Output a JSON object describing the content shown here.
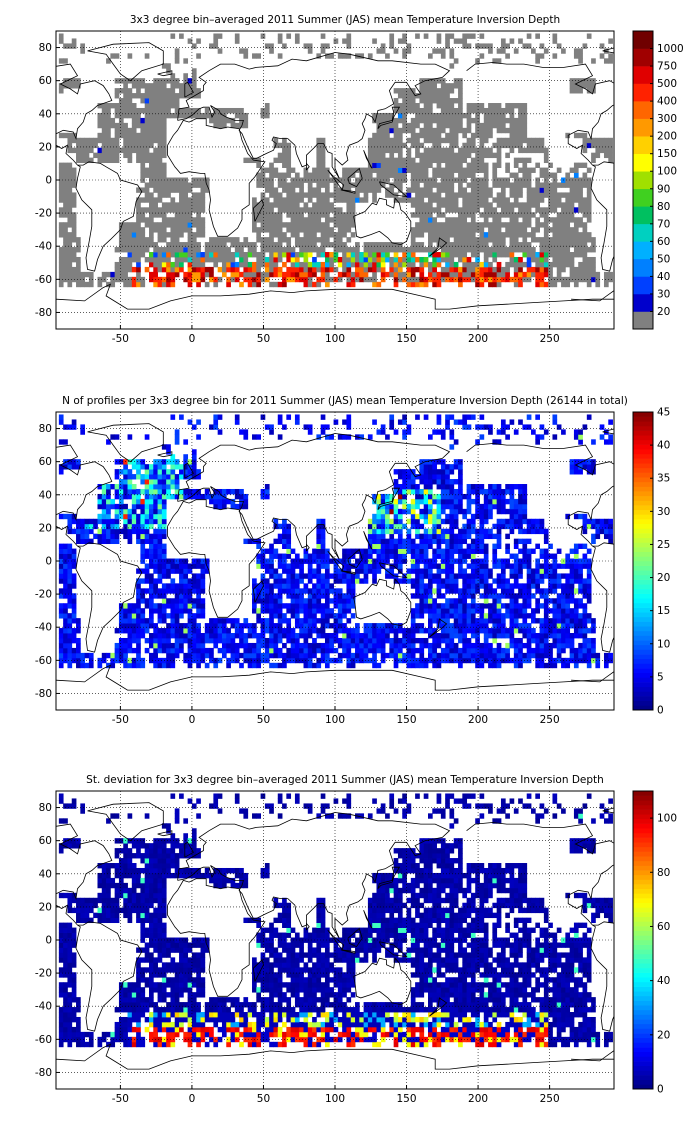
{
  "chart_data": [
    {
      "type": "heatmap",
      "title": "3x3 degree bin–averaged 2011 Summer (JAS) mean Temperature Inversion Depth",
      "xlim": [
        -95,
        295
      ],
      "ylim": [
        -90,
        90
      ],
      "xticks": [
        -50,
        0,
        50,
        100,
        150,
        200,
        250
      ],
      "yticks": [
        80,
        60,
        40,
        20,
        0,
        -20,
        -40,
        -60,
        -80
      ],
      "grid": true,
      "colorbar": {
        "scale": "categorical",
        "labels": [
          "20",
          "30",
          "40",
          "50",
          "60",
          "70",
          "80",
          "90",
          "100",
          "150",
          "200",
          "300",
          "400",
          "500",
          "750",
          "1000"
        ],
        "colors": [
          "#808080",
          "#0000cc",
          "#0040ff",
          "#0080ff",
          "#00b0ff",
          "#00d0c0",
          "#00c060",
          "#40d020",
          "#a0e000",
          "#ffff00",
          "#ffd000",
          "#ff9900",
          "#ff6600",
          "#ff2200",
          "#e00000",
          "#a00000",
          "#700000"
        ]
      },
      "pattern": "most ocean bins near 20 (grey); bins from -45 to -65 latitude between 0 and 200 longitude reach 100–1000"
    },
    {
      "type": "heatmap",
      "title": "N of profiles per 3x3 degree bin for 2011 Summer (JAS) mean Temperature Inversion Depth  (26144 in total)",
      "xlim": [
        -95,
        295
      ],
      "ylim": [
        -90,
        90
      ],
      "xticks": [
        -50,
        0,
        50,
        100,
        150,
        200,
        250
      ],
      "yticks": [
        80,
        60,
        40,
        20,
        0,
        -20,
        -40,
        -60,
        -80
      ],
      "grid": true,
      "colorbar": {
        "scale": "jet",
        "min": 0,
        "max": 45,
        "ticks": [
          45,
          40,
          35,
          30,
          25,
          20,
          15,
          10,
          5,
          0
        ]
      },
      "pattern": "mostly 1–5 profiles per bin; higher counts in the North Atlantic and the western North Pacific"
    },
    {
      "type": "heatmap",
      "title": "St. deviation for 3x3 degree bin–averaged 2011 Summer (JAS) mean Temperature Inversion Depth",
      "xlim": [
        -95,
        295
      ],
      "ylim": [
        -90,
        90
      ],
      "xticks": [
        -50,
        0,
        50,
        100,
        150,
        200,
        250
      ],
      "yticks": [
        80,
        60,
        40,
        20,
        0,
        -20,
        -40,
        -60,
        -80
      ],
      "grid": true,
      "colorbar": {
        "scale": "jet",
        "min": 0,
        "max": 110,
        "ticks": [
          100,
          80,
          60,
          40,
          20,
          0
        ]
      },
      "pattern": "mostly near 0 (dark blue); values up to 110 from -45 to -65 latitude"
    }
  ]
}
